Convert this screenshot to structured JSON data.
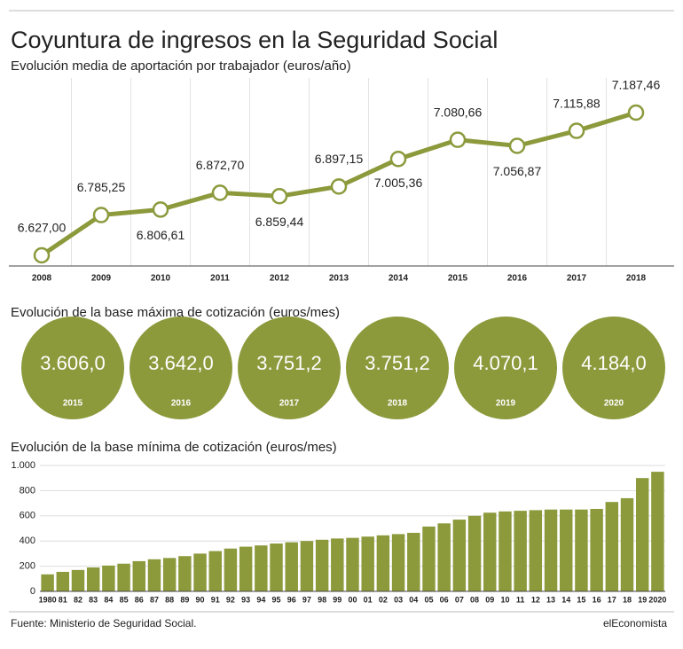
{
  "title": "Coyuntura de ingresos en la Seguridad Social",
  "source": "Fuente: Ministerio de Seguridad Social.",
  "brand": "elEconomista",
  "chart_data": [
    {
      "type": "line",
      "title": "Evolución media de aportación por trabajador (euros/año)",
      "color": "#8c9a3c",
      "categories": [
        "2008",
        "2009",
        "2010",
        "2011",
        "2012",
        "2013",
        "2014",
        "2015",
        "2016",
        "2017",
        "2018"
      ],
      "values": [
        6627.0,
        6785.25,
        6806.61,
        6872.7,
        6859.44,
        6897.15,
        7005.36,
        7080.66,
        7056.87,
        7115.88,
        7187.46
      ],
      "value_labels": [
        "6.627,00",
        "6.785,25",
        "6.806,61",
        "6.872,70",
        "6.859,44",
        "6.897,15",
        "7.005,36",
        "7.080,66",
        "7.056,87",
        "7.115,88",
        "7.187,46"
      ]
    },
    {
      "type": "circle",
      "title": "Evolución de la base máxima de cotización (euros/mes)",
      "color": "#8c9a3c",
      "categories": [
        "2015",
        "2016",
        "2017",
        "2018",
        "2019",
        "2020"
      ],
      "values": [
        3606.0,
        3642.0,
        3751.2,
        3751.2,
        4070.1,
        4184.0
      ],
      "value_labels": [
        "3.606,0",
        "3.642,0",
        "3.751,2",
        "3.751,2",
        "4.070,1",
        "4.184,0"
      ]
    },
    {
      "type": "bar",
      "title": "Evolución de la base mínima de cotización (euros/mes)",
      "color": "#8c9a3c",
      "grid": true,
      "categories": [
        "1980",
        "81",
        "82",
        "83",
        "84",
        "85",
        "86",
        "87",
        "88",
        "89",
        "90",
        "91",
        "92",
        "93",
        "94",
        "95",
        "96",
        "97",
        "98",
        "99",
        "00",
        "01",
        "02",
        "03",
        "04",
        "05",
        "06",
        "07",
        "08",
        "09",
        "10",
        "11",
        "12",
        "13",
        "14",
        "15",
        "16",
        "17",
        "18",
        "19",
        "2020"
      ],
      "values": [
        135,
        155,
        170,
        190,
        205,
        220,
        240,
        255,
        265,
        280,
        300,
        320,
        340,
        355,
        365,
        380,
        390,
        400,
        410,
        420,
        425,
        435,
        445,
        455,
        465,
        515,
        540,
        570,
        600,
        625,
        635,
        640,
        645,
        650,
        650,
        650,
        655,
        710,
        740,
        900,
        950
      ],
      "ylim": [
        0,
        1000
      ],
      "yticks": [
        0,
        200,
        400,
        600,
        800,
        {
          "value": 1000,
          "label": "1.000"
        }
      ]
    }
  ]
}
